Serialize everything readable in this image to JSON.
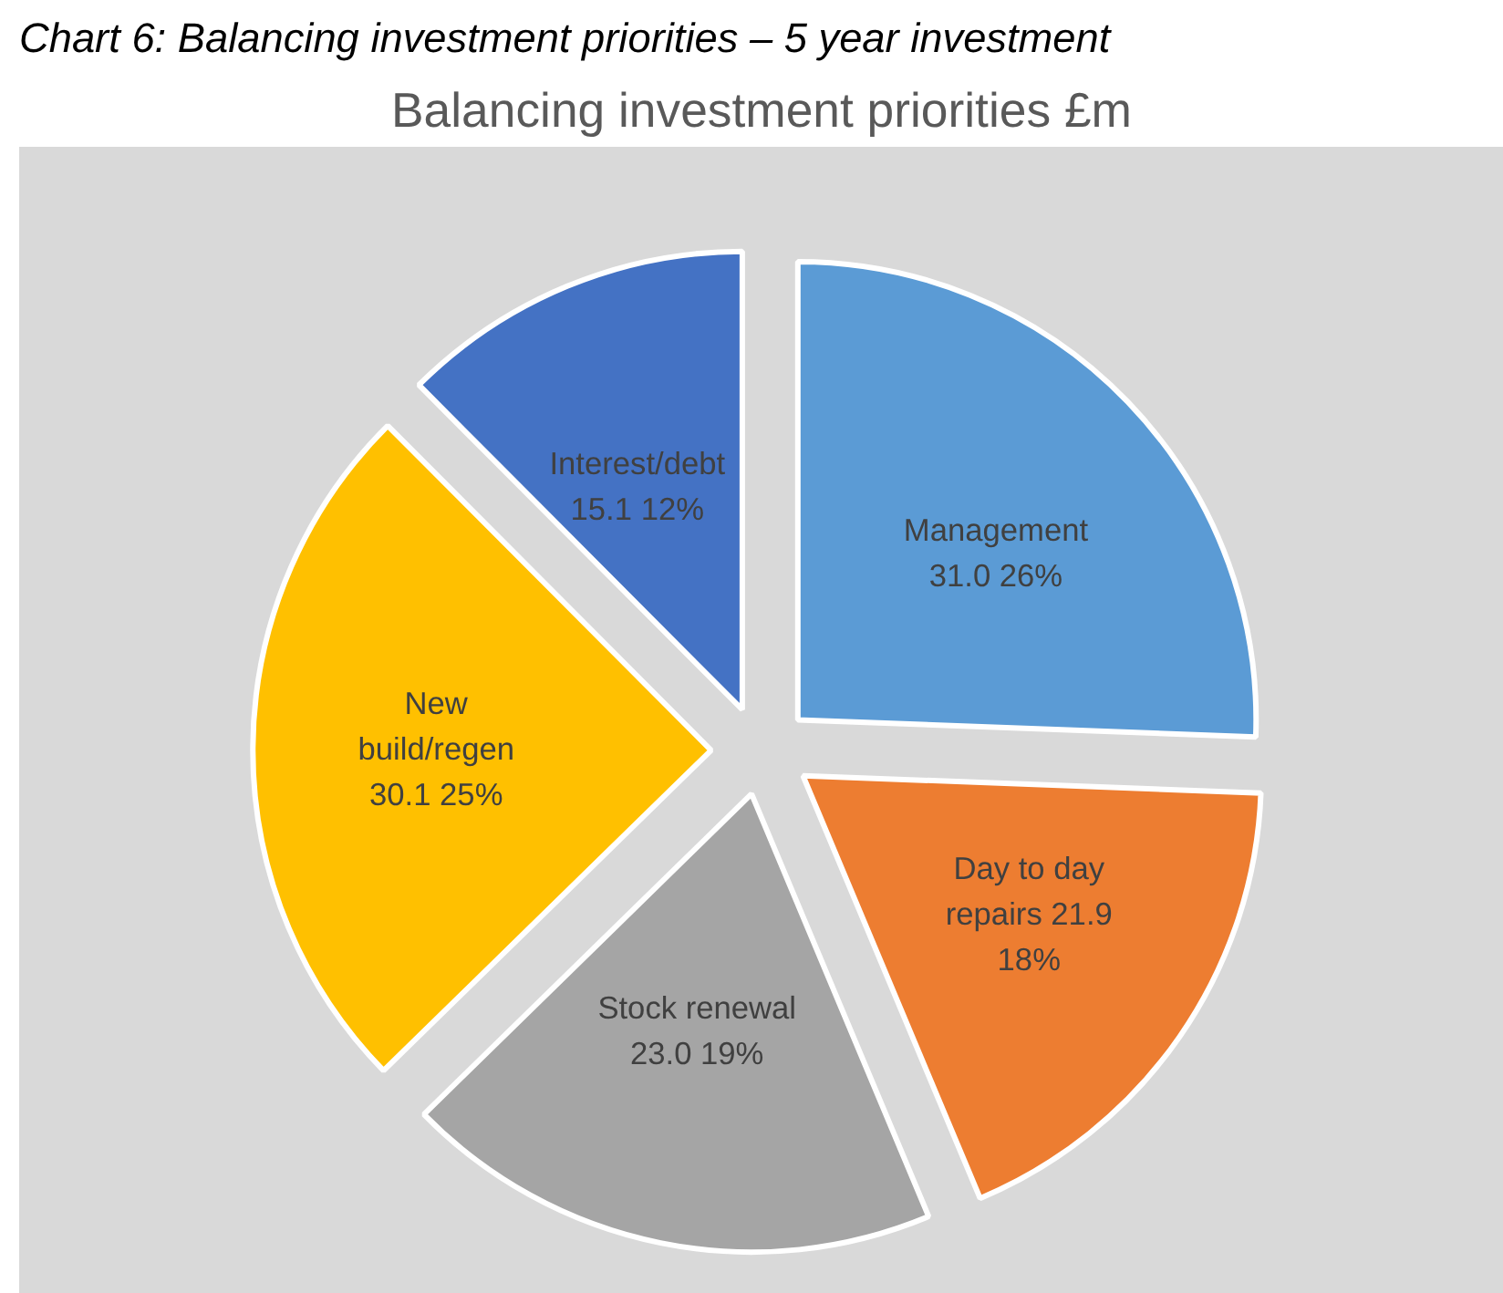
{
  "chart_data": {
    "type": "pie",
    "title": "Balancing investment priorities £m",
    "annotations": [
      "Chart 6: Balancing investment priorities – 5 year investment"
    ],
    "categories": [
      "Management",
      "Day to day repairs",
      "Stock renewal",
      "New build/regen",
      "Interest/debt"
    ],
    "values": [
      31.0,
      21.9,
      23.0,
      30.1,
      15.1
    ],
    "value_labels": [
      "31.0 26%",
      "21.9 18%",
      "23.0 19%",
      "30.1 25%",
      "15.1 12%"
    ],
    "colors": [
      "#5b9bd5",
      "#ed7d31",
      "#a5a5a5",
      "#ffc000",
      "#4472c4"
    ]
  }
}
